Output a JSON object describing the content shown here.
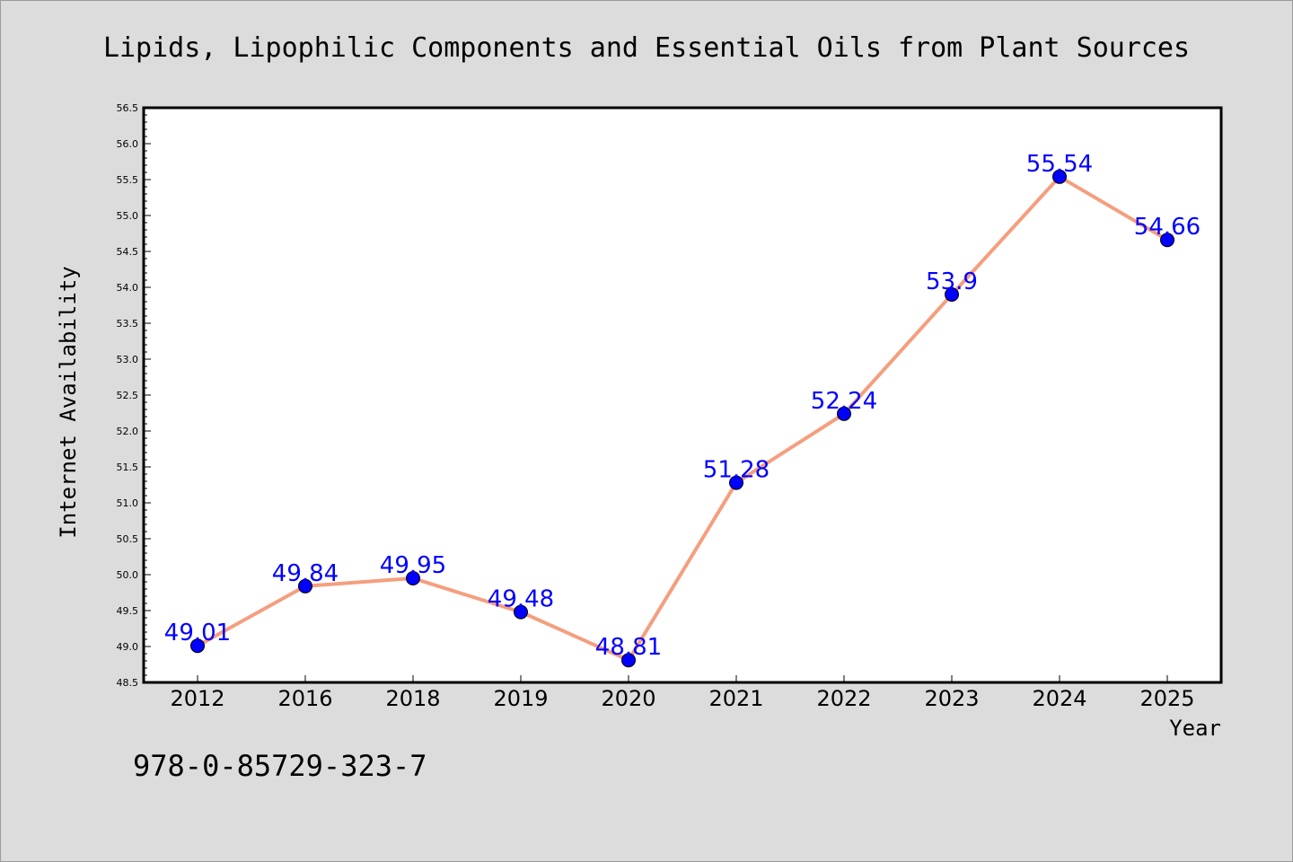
{
  "chart_data": {
    "type": "line",
    "title": "Lipids, Lipophilic Components and Essential Oils from Plant Sources",
    "xlabel": "Year",
    "ylabel": "Internet Availability",
    "categories": [
      "2012",
      "2016",
      "2018",
      "2019",
      "2020",
      "2021",
      "2022",
      "2023",
      "2024",
      "2025"
    ],
    "series": [
      {
        "values": [
          49.01,
          49.84,
          49.95,
          49.48,
          48.81,
          51.28,
          52.24,
          53.9,
          55.54,
          54.66
        ],
        "labels": [
          "49.01",
          "49.84",
          "49.95",
          "49.48",
          "48.81",
          "51.28",
          "52.24",
          "53.9",
          "55.54",
          "54.66"
        ],
        "line_color": "#f59e7e",
        "marker_color": "#0000ff"
      }
    ],
    "ylim": [
      48.5,
      56.5
    ],
    "yticks": [
      "48.5",
      "49.0",
      "49.5",
      "50.0",
      "50.5",
      "51.0",
      "51.5",
      "52.0",
      "52.5",
      "53.0",
      "53.5",
      "54.0",
      "54.5",
      "55.0",
      "55.5",
      "56.0",
      "56.5"
    ],
    "grid": false,
    "background": "#dcdcdc",
    "plot_background": "#ffffff"
  },
  "footer": {
    "isbn": "978-0-85729-323-7"
  }
}
